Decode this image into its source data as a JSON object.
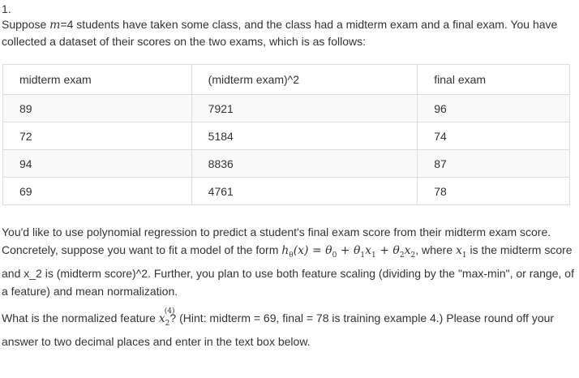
{
  "question": {
    "number": "1.",
    "intro_pre": "Suppose ",
    "m_var": "m",
    "intro_post": "=4 students have taken some class, and the class had a midterm exam and a final exam. You have collected a dataset of their scores on the two exams, which is as follows:"
  },
  "table": {
    "headers": [
      "midterm exam",
      "(midterm exam)^2",
      "final exam"
    ],
    "rows": [
      [
        "89",
        "7921",
        "96"
      ],
      [
        "72",
        "5184",
        "74"
      ],
      [
        "94",
        "8836",
        "87"
      ],
      [
        "69",
        "4761",
        "78"
      ]
    ]
  },
  "paragraph2": {
    "part1": "You'd like to use polynomial regression to predict a student's final exam score from their midterm exam score. Concretely, suppose you want to fit a model of the form ",
    "formula": "hθ(x) = θ0 + θ1x1 + θ2x2",
    "part2": ", where ",
    "x1": "x1",
    "part3": " is the midterm score and x_2 is (midterm score)^2. Further, you plan to use both feature scaling (dividing by the \"max-min\", or range, of a feature) and mean normalization."
  },
  "paragraph3": {
    "part1": "What is the normalized feature ",
    "feature": "x2(4)",
    "part2": "? (Hint: midterm = 69, final = 78 is training example 4.) Please round off your answer to two decimal places and enter in the text box below."
  }
}
